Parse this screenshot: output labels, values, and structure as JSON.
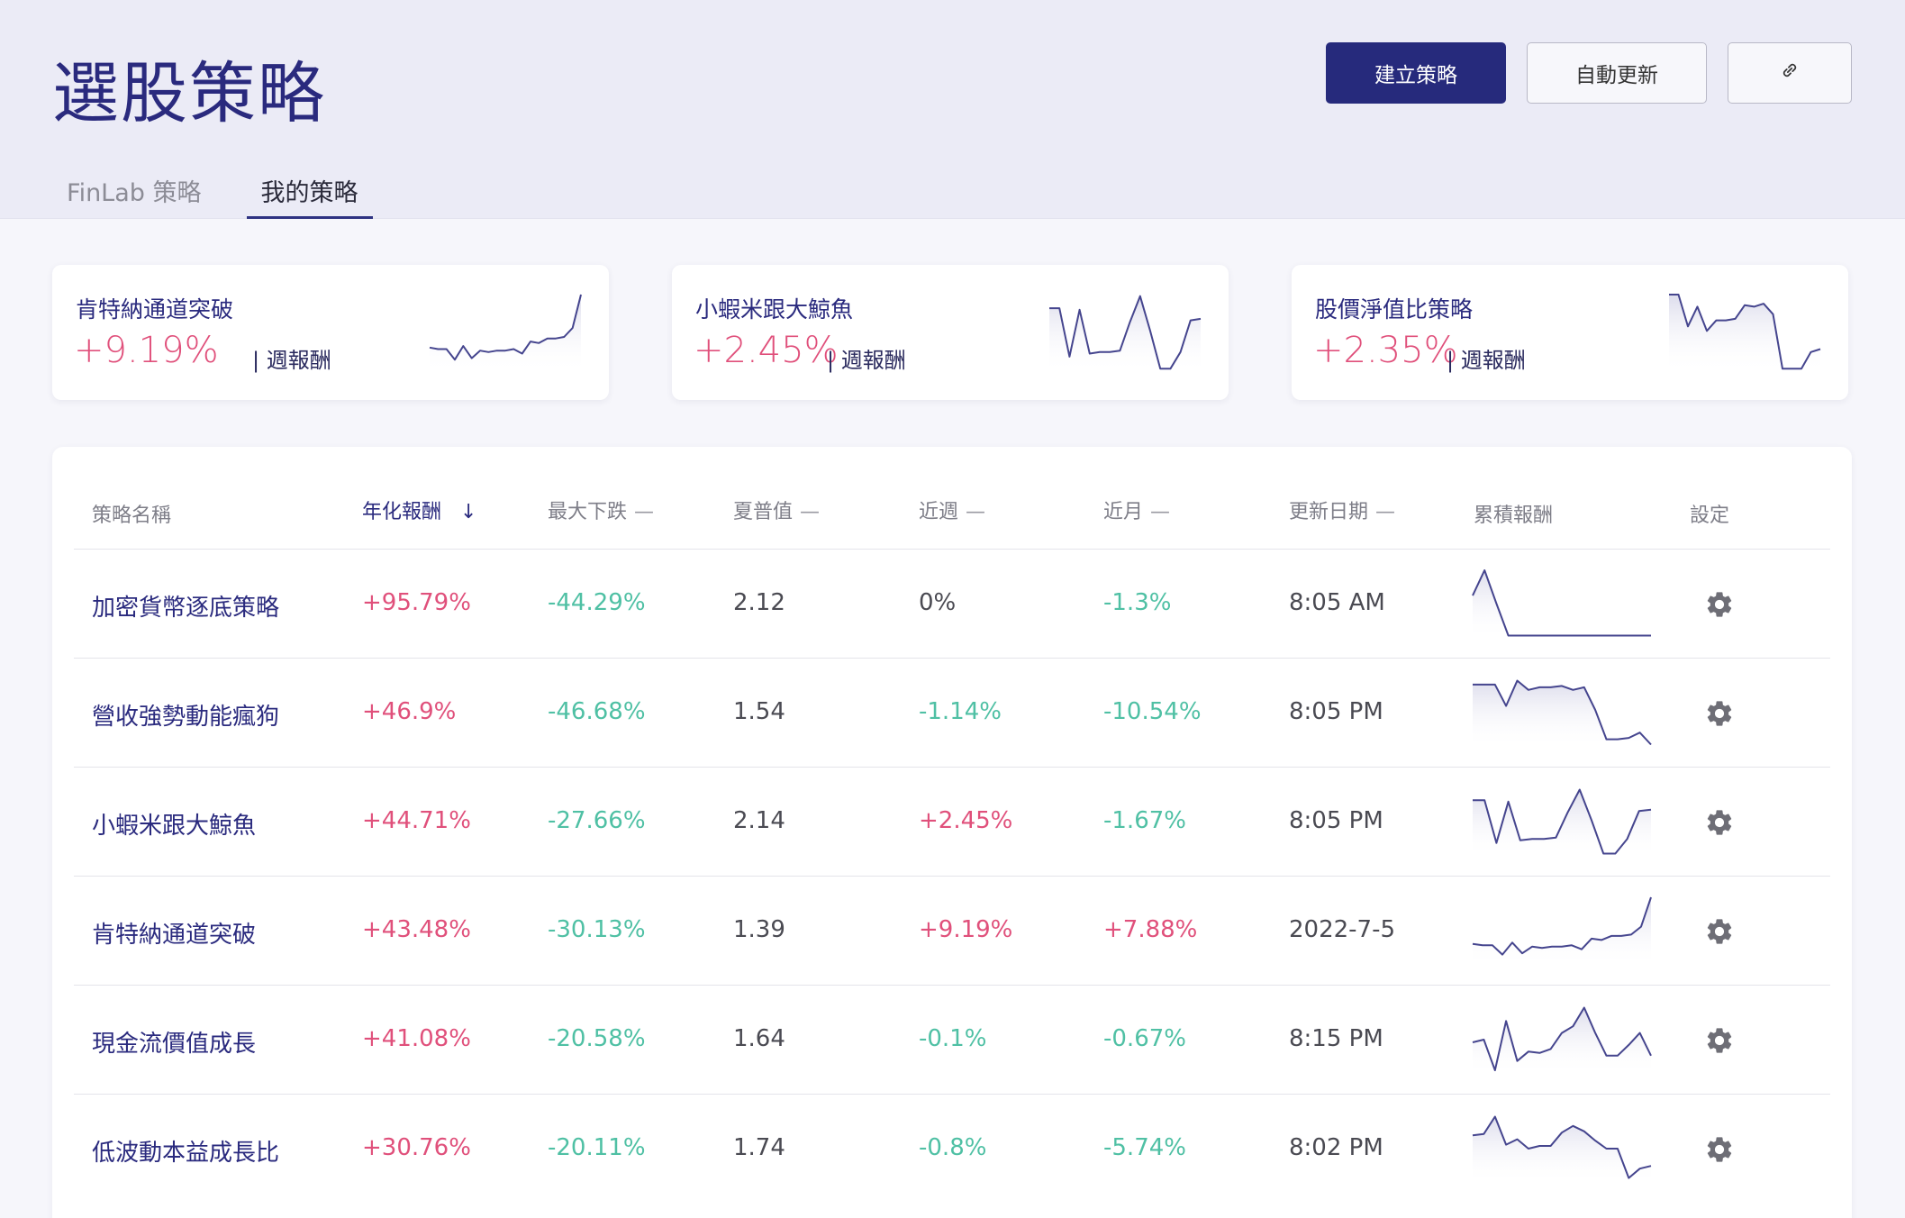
{
  "header": {
    "title": "選股策略",
    "create_button": "建立策略",
    "auto_update_button": "自動更新",
    "link_icon": "link-icon"
  },
  "tabs": [
    {
      "label": "FinLab 策略",
      "active": false
    },
    {
      "label": "我的策略",
      "active": true
    }
  ],
  "cards": [
    {
      "name": "肯特納通道突破",
      "return": "+9.19%",
      "suffix": "| 週報酬",
      "spark": [
        0.3,
        0.28,
        0.28,
        0.14,
        0.32,
        0.16,
        0.26,
        0.24,
        0.26,
        0.26,
        0.28,
        0.22,
        0.38,
        0.36,
        0.42,
        0.42,
        0.44,
        0.56,
        1.0
      ]
    },
    {
      "name": "小蝦米跟大鯨魚",
      "return": "+2.45%",
      "suffix": "| 週報酬",
      "spark": [
        0.82,
        0.82,
        0.18,
        0.8,
        0.22,
        0.24,
        0.24,
        0.26,
        0.64,
        0.98,
        0.52,
        0.02,
        0.02,
        0.24,
        0.66,
        0.68
      ]
    },
    {
      "name": "股價淨值比策略",
      "return": "+2.35%",
      "suffix": "| 週報酬",
      "spark": [
        1.0,
        1.0,
        0.58,
        0.84,
        0.52,
        0.66,
        0.66,
        0.68,
        0.86,
        0.84,
        0.88,
        0.74,
        0.02,
        0.02,
        0.02,
        0.24,
        0.28
      ]
    }
  ],
  "table": {
    "columns": {
      "name": "策略名稱",
      "annual": "年化報酬",
      "max_drawdown": "最大下跌",
      "sharpe": "夏普值",
      "week": "近週",
      "month": "近月",
      "updated": "更新日期",
      "cumulative": "累積報酬",
      "settings": "設定"
    },
    "sort_dash": "—",
    "sort_arrow": "↓",
    "rows": [
      {
        "name": "加密貨幣逐底策略",
        "annual": "+95.79%",
        "annual_sign": "pos",
        "mdd": "-44.29%",
        "mdd_sign": "neg",
        "sharpe": "2.12",
        "week": "0%",
        "week_sign": "neutral",
        "month": "-1.3%",
        "month_sign": "neg",
        "updated": "8:05 AM",
        "spark": [
          0.62,
          1.0,
          0.5,
          0.02,
          0.02,
          0.02,
          0.02,
          0.02,
          0.02,
          0.02,
          0.02,
          0.02,
          0.02,
          0.02,
          0.02,
          0.02
        ]
      },
      {
        "name": "營收強勢動能瘋狗",
        "annual": "+46.9%",
        "annual_sign": "pos",
        "mdd": "-46.68%",
        "mdd_sign": "neg",
        "sharpe": "1.54",
        "week": "-1.14%",
        "week_sign": "neg",
        "month": "-10.54%",
        "month_sign": "neg",
        "updated": "8:05 PM",
        "spark": [
          0.92,
          0.92,
          0.92,
          0.6,
          0.98,
          0.84,
          0.88,
          0.88,
          0.9,
          0.84,
          0.88,
          0.54,
          0.1,
          0.1,
          0.12,
          0.2,
          0.02
        ]
      },
      {
        "name": "小蝦米跟大鯨魚",
        "annual": "+44.71%",
        "annual_sign": "pos",
        "mdd": "-27.66%",
        "mdd_sign": "neg",
        "sharpe": "2.14",
        "week": "+2.45%",
        "week_sign": "pos",
        "month": "-1.67%",
        "month_sign": "neg",
        "updated": "8:05 PM",
        "spark": [
          0.82,
          0.82,
          0.18,
          0.8,
          0.22,
          0.24,
          0.24,
          0.26,
          0.64,
          0.98,
          0.52,
          0.02,
          0.02,
          0.24,
          0.66,
          0.68
        ]
      },
      {
        "name": "肯特納通道突破",
        "annual": "+43.48%",
        "annual_sign": "pos",
        "mdd": "-30.13%",
        "mdd_sign": "neg",
        "sharpe": "1.39",
        "week": "+9.19%",
        "week_sign": "pos",
        "month": "+7.88%",
        "month_sign": "pos",
        "updated": "2022-7-5",
        "spark": [
          0.3,
          0.28,
          0.28,
          0.14,
          0.32,
          0.16,
          0.26,
          0.24,
          0.26,
          0.26,
          0.28,
          0.22,
          0.38,
          0.36,
          0.42,
          0.42,
          0.44,
          0.56,
          1.0
        ]
      },
      {
        "name": "現金流價值成長",
        "annual": "+41.08%",
        "annual_sign": "pos",
        "mdd": "-20.58%",
        "mdd_sign": "neg",
        "sharpe": "1.64",
        "week": "-0.1%",
        "week_sign": "neg",
        "month": "-0.67%",
        "month_sign": "neg",
        "updated": "8:15 PM",
        "spark": [
          0.46,
          0.5,
          0.04,
          0.78,
          0.18,
          0.32,
          0.3,
          0.36,
          0.6,
          0.7,
          0.98,
          0.6,
          0.26,
          0.26,
          0.42,
          0.6,
          0.26
        ]
      },
      {
        "name": "低波動本益成長比",
        "annual": "+30.76%",
        "annual_sign": "pos",
        "mdd": "-20.11%",
        "mdd_sign": "neg",
        "sharpe": "1.74",
        "week": "-0.8%",
        "week_sign": "neg",
        "month": "-5.74%",
        "month_sign": "neg",
        "updated": "8:02 PM",
        "spark": [
          0.7,
          0.72,
          0.98,
          0.56,
          0.64,
          0.5,
          0.54,
          0.54,
          0.74,
          0.84,
          0.76,
          0.62,
          0.5,
          0.5,
          0.06,
          0.2,
          0.24
        ]
      }
    ]
  },
  "colors": {
    "accent": "#262a7c",
    "positive": "#e0507b",
    "negative": "#4fc0a4",
    "spark_line": "#45458e"
  }
}
